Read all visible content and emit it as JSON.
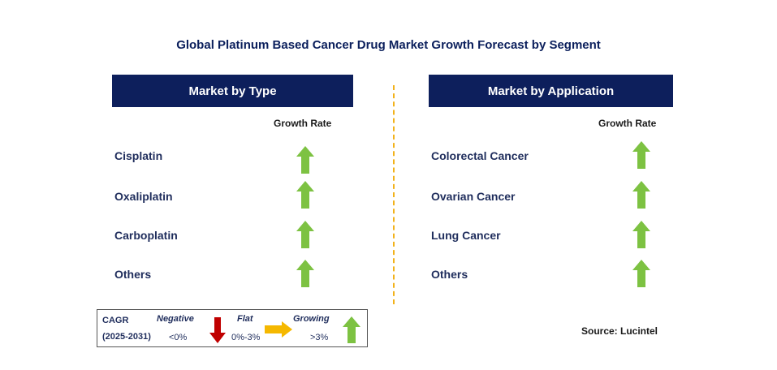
{
  "title": "Global Platinum Based Cancer Drug Market Growth Forecast by Segment",
  "left_panel": {
    "header": "Market by Type",
    "growth_label": "Growth Rate",
    "rows": [
      {
        "label": "Cisplatin",
        "trend": "growing"
      },
      {
        "label": "Oxaliplatin",
        "trend": "growing"
      },
      {
        "label": "Carboplatin",
        "trend": "growing"
      },
      {
        "label": "Others",
        "trend": "growing"
      }
    ]
  },
  "right_panel": {
    "header": "Market by Application",
    "growth_label": "Growth Rate",
    "rows": [
      {
        "label": "Colorectal Cancer",
        "trend": "growing"
      },
      {
        "label": "Ovarian Cancer",
        "trend": "growing"
      },
      {
        "label": "Lung Cancer",
        "trend": "growing"
      },
      {
        "label": "Others",
        "trend": "growing"
      }
    ]
  },
  "legend": {
    "cagr": "CAGR",
    "period": "(2025-2031)",
    "negative": {
      "label": "Negative",
      "range": "<0%",
      "color": "#c00000"
    },
    "flat": {
      "label": "Flat",
      "range": "0%-3%",
      "color": "#f5b800"
    },
    "growing": {
      "label": "Growing",
      "range": ">3%",
      "color": "#7dc242"
    }
  },
  "source": "Source: Lucintel",
  "colors": {
    "header_bg": "#0d1f5c",
    "divider": "#f2b21b",
    "arrow_up": "#7dc242"
  }
}
